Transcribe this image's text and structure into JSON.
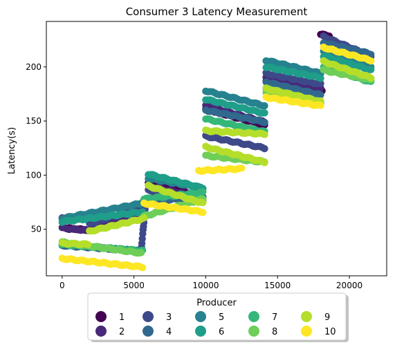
{
  "chart_data": {
    "type": "scatter",
    "title": "Consumer 3 Latency Measurement",
    "xlabel": "",
    "ylabel": "Latency(s)",
    "xlim": [
      -1100,
      22600
    ],
    "ylim": [
      7,
      242
    ],
    "xticks": [
      0,
      5000,
      10000,
      15000,
      20000
    ],
    "yticks": [
      50,
      100,
      150,
      200
    ],
    "grid": false,
    "legend": {
      "title": "Producer",
      "placement": "bottom-center",
      "columns": 5
    },
    "series": [
      {
        "name": "1",
        "color": "#440154",
        "segments": [
          [
            [
              300,
              51
            ],
            [
              2100,
              49
            ]
          ],
          [
            [
              2400,
              51
            ],
            [
              5500,
              62
            ]
          ],
          [
            [
              6000,
              93
            ],
            [
              9800,
              80
            ]
          ],
          [
            [
              10000,
              161
            ],
            [
              14100,
              146
            ]
          ],
          [
            [
              18000,
              230
            ],
            [
              18600,
              229
            ]
          ],
          [
            [
              14200,
              187
            ],
            [
              18100,
              178
            ]
          ]
        ]
      },
      {
        "name": "2",
        "color": "#482878",
        "segments": [
          [
            [
              0,
              51
            ],
            [
              1800,
              49
            ]
          ],
          [
            [
              1900,
              48
            ],
            [
              5600,
              65
            ]
          ],
          [
            [
              6000,
              90
            ],
            [
              9800,
              79
            ]
          ],
          [
            [
              10000,
              164
            ],
            [
              14100,
              149
            ]
          ],
          [
            [
              14200,
              190
            ],
            [
              18000,
              180
            ]
          ]
        ]
      },
      {
        "name": "3",
        "color": "#3e4989",
        "segments": [
          [
            [
              0,
              60
            ],
            [
              1800,
              62
            ]
          ],
          [
            [
              1900,
              55
            ],
            [
              5600,
              70
            ]
          ],
          [
            [
              5500,
              30
            ],
            [
              5800,
              72
            ]
          ],
          [
            [
              6000,
              86
            ],
            [
              9800,
              76
            ]
          ],
          [
            [
              10000,
              136
            ],
            [
              14100,
              125
            ]
          ],
          [
            [
              14200,
              194
            ],
            [
              18000,
              184
            ]
          ],
          [
            [
              18200,
              228
            ],
            [
              21500,
              210
            ]
          ]
        ]
      },
      {
        "name": "4",
        "color": "#31688e",
        "segments": [
          [
            [
              0,
              35
            ],
            [
              5500,
              30
            ]
          ],
          [
            [
              5600,
              75
            ],
            [
              9800,
              80
            ]
          ],
          [
            [
              10000,
              160
            ],
            [
              14100,
              149
            ]
          ],
          [
            [
              14200,
              186
            ],
            [
              18000,
              174
            ]
          ],
          [
            [
              18200,
              222
            ],
            [
              21500,
              212
            ]
          ]
        ]
      },
      {
        "name": "5",
        "color": "#26828e",
        "segments": [
          [
            [
              0,
              60
            ],
            [
              5600,
              74
            ]
          ],
          [
            [
              6000,
              97
            ],
            [
              9800,
              88
            ]
          ],
          [
            [
              10000,
              178
            ],
            [
              14100,
              164
            ]
          ],
          [
            [
              14200,
              206
            ],
            [
              18000,
              194
            ]
          ],
          [
            [
              18200,
              215
            ],
            [
              21500,
              200
            ]
          ]
        ]
      },
      {
        "name": "6",
        "color": "#1f9e89",
        "segments": [
          [
            [
              0,
              57
            ],
            [
              5600,
              66
            ]
          ],
          [
            [
              6000,
              101
            ],
            [
              9800,
              88
            ]
          ],
          [
            [
              10000,
              170
            ],
            [
              14100,
              157
            ]
          ],
          [
            [
              14200,
              200
            ],
            [
              18000,
              190
            ]
          ],
          [
            [
              18200,
              210
            ],
            [
              21500,
              197
            ]
          ]
        ]
      },
      {
        "name": "7",
        "color": "#35b779",
        "segments": [
          [
            [
              0,
              36
            ],
            [
              5600,
              30
            ]
          ],
          [
            [
              5700,
              78
            ],
            [
              9800,
              84
            ]
          ],
          [
            [
              10000,
              152
            ],
            [
              14100,
              140
            ]
          ],
          [
            [
              14200,
              180
            ],
            [
              18000,
              167
            ]
          ],
          [
            [
              18200,
              200
            ],
            [
              21500,
              186
            ]
          ]
        ]
      },
      {
        "name": "8",
        "color": "#6ece58",
        "segments": [
          [
            [
              0,
              38
            ],
            [
              5500,
              28
            ]
          ],
          [
            [
              5700,
              62
            ],
            [
              9800,
              78
            ]
          ],
          [
            [
              10000,
              118
            ],
            [
              14100,
              112
            ]
          ],
          [
            [
              14200,
              176
            ],
            [
              18000,
              165
            ]
          ],
          [
            [
              18200,
              197
            ],
            [
              21500,
              188
            ]
          ]
        ]
      },
      {
        "name": "9",
        "color": "#b5de2b",
        "segments": [
          [
            [
              0,
              37
            ],
            [
              1800,
              36
            ]
          ],
          [
            [
              1900,
              48
            ],
            [
              5700,
              60
            ]
          ],
          [
            [
              6000,
              90
            ],
            [
              9800,
              74
            ]
          ],
          [
            [
              10000,
              141
            ],
            [
              14100,
              138
            ]
          ],
          [
            [
              10000,
              126
            ],
            [
              14100,
              112
            ]
          ],
          [
            [
              14200,
              180
            ],
            [
              18000,
              168
            ]
          ],
          [
            [
              18200,
              205
            ],
            [
              21500,
              190
            ]
          ]
        ]
      },
      {
        "name": "10",
        "color": "#fde725",
        "segments": [
          [
            [
              0,
              23
            ],
            [
              5600,
              15
            ]
          ],
          [
            [
              5700,
              74
            ],
            [
              9800,
              66
            ]
          ],
          [
            [
              9500,
              104
            ],
            [
              12500,
              106
            ]
          ],
          [
            [
              14200,
              172
            ],
            [
              18000,
              164
            ]
          ],
          [
            [
              18200,
              218
            ],
            [
              21500,
              206
            ]
          ]
        ]
      }
    ],
    "legend_labels": [
      "1",
      "2",
      "3",
      "4",
      "5",
      "6",
      "7",
      "8",
      "9",
      "10"
    ]
  }
}
